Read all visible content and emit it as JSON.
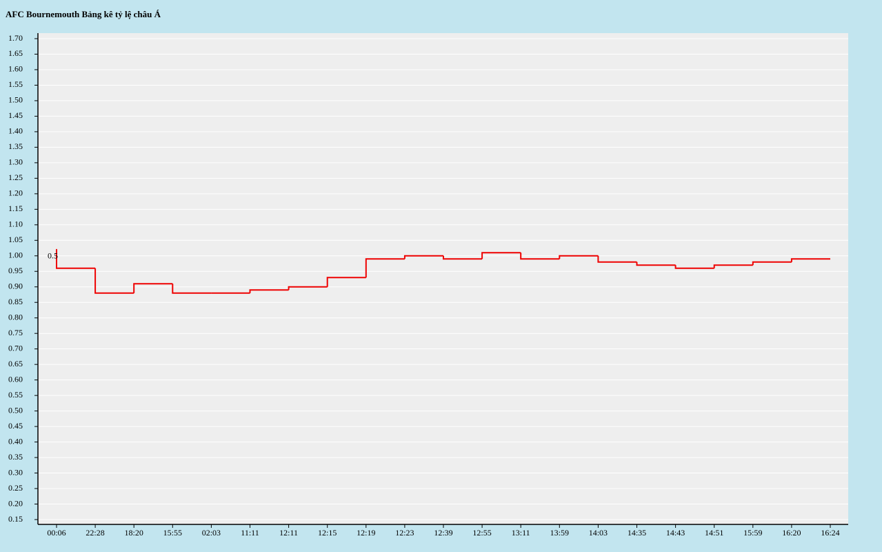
{
  "chart_data": {
    "type": "step",
    "title": "AFC Bournemouth Bảng kê tỷ lệ châu Á",
    "annotation": "0.5",
    "categories": [
      "00:06",
      "22:28",
      "18:20",
      "15:55",
      "02:03",
      "11:11",
      "12:11",
      "12:15",
      "12:19",
      "12:23",
      "12:39",
      "12:55",
      "13:11",
      "13:59",
      "14:03",
      "14:35",
      "14:43",
      "14:51",
      "15:59",
      "16:20",
      "16:24"
    ],
    "series": [
      {
        "color": "#ee0000",
        "values": [
          1.02,
          0.96,
          0.88,
          0.91,
          0.88,
          0.88,
          0.89,
          0.9,
          0.93,
          0.99,
          1.0,
          0.99,
          1.01,
          0.99,
          1.0,
          0.98,
          0.97,
          0.96,
          0.97,
          0.98,
          0.99
        ]
      }
    ],
    "ylim": [
      0.15,
      1.7
    ],
    "yticks": [
      0.15,
      {
        "value": 0.2,
        "label": "0.20"
      },
      0.25,
      {
        "value": 0.3,
        "label": "0.30"
      },
      0.35,
      {
        "value": 0.4,
        "label": "0.40"
      },
      0.45,
      {
        "value": 0.5,
        "label": "0.50"
      },
      0.55,
      {
        "value": 0.6,
        "label": "0.60"
      },
      0.65,
      {
        "value": 0.7,
        "label": "0.70"
      },
      0.75,
      {
        "value": 0.8,
        "label": "0.80"
      },
      0.85,
      {
        "value": 0.9,
        "label": "0.90"
      },
      0.95,
      {
        "value": 1,
        "label": "1.00"
      },
      1.05,
      {
        "value": 1.1,
        "label": "1.10"
      },
      1.15,
      {
        "value": 1.2,
        "label": "1.20"
      },
      1.25,
      {
        "value": 1.3,
        "label": "1.30"
      },
      1.35,
      {
        "value": 1.4,
        "label": "1.40"
      },
      1.45,
      {
        "value": 1.5,
        "label": "1.50"
      },
      1.55,
      {
        "value": 1.6,
        "label": "1.60"
      },
      1.65,
      {
        "value": 1.7,
        "label": "1.70"
      }
    ],
    "grid": true
  }
}
